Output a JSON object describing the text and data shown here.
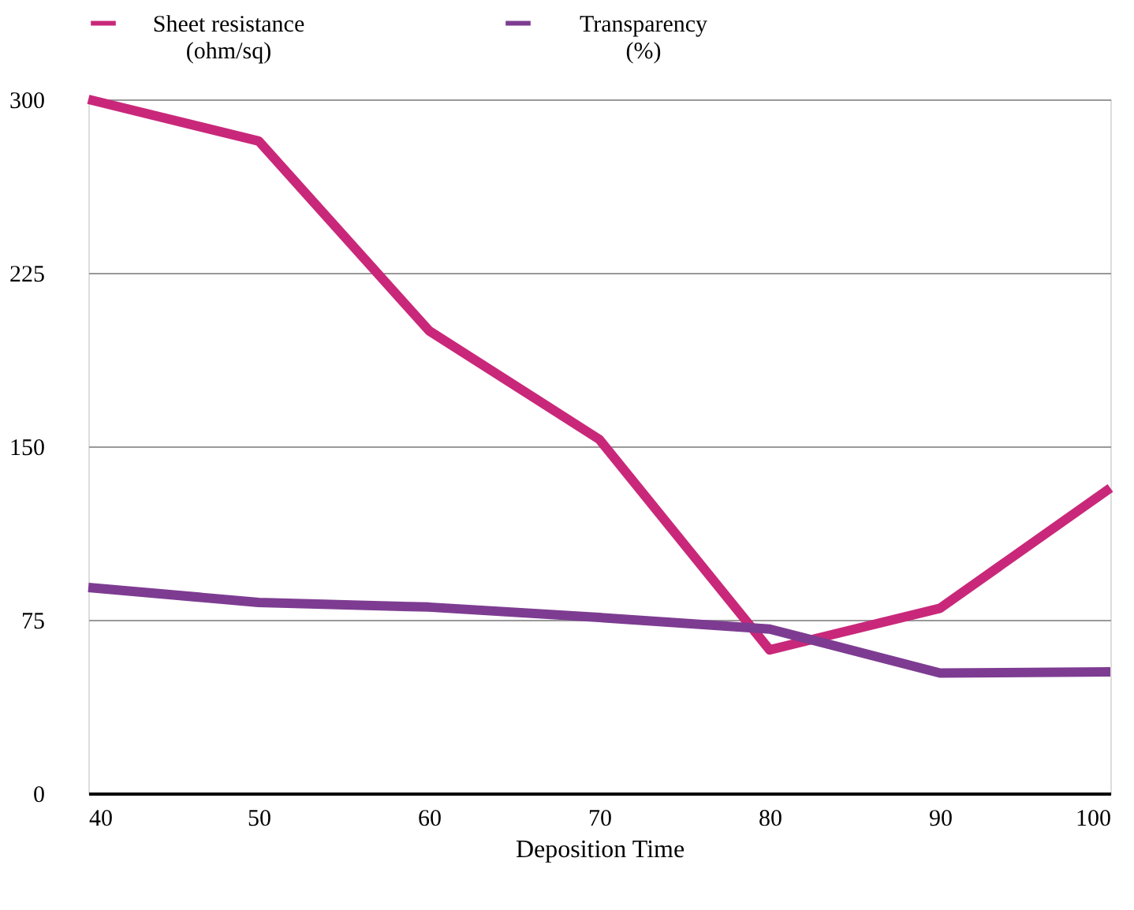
{
  "chart_data": {
    "type": "line",
    "xlabel": "Deposition Time",
    "x": [
      40,
      50,
      60,
      70,
      80,
      90,
      100
    ],
    "series": [
      {
        "name": "Sheet resistance\n(ohm/sq)",
        "color": "#c9287a",
        "values": [
          300,
          282,
          200,
          153,
          62,
          80,
          132
        ]
      },
      {
        "name": "Transparency\n(%)",
        "color": "#7d3c91",
        "values": [
          89,
          82.5,
          80.5,
          76,
          71,
          52,
          52.5
        ]
      }
    ],
    "xlim": [
      40,
      100
    ],
    "xticks": [
      40,
      50,
      60,
      70,
      80,
      90,
      100
    ],
    "ylim": [
      0,
      300
    ],
    "yticks": [
      0,
      75,
      150,
      225,
      300
    ],
    "grid": "y",
    "legend": "top",
    "marker": "none",
    "line_style": "solid"
  }
}
